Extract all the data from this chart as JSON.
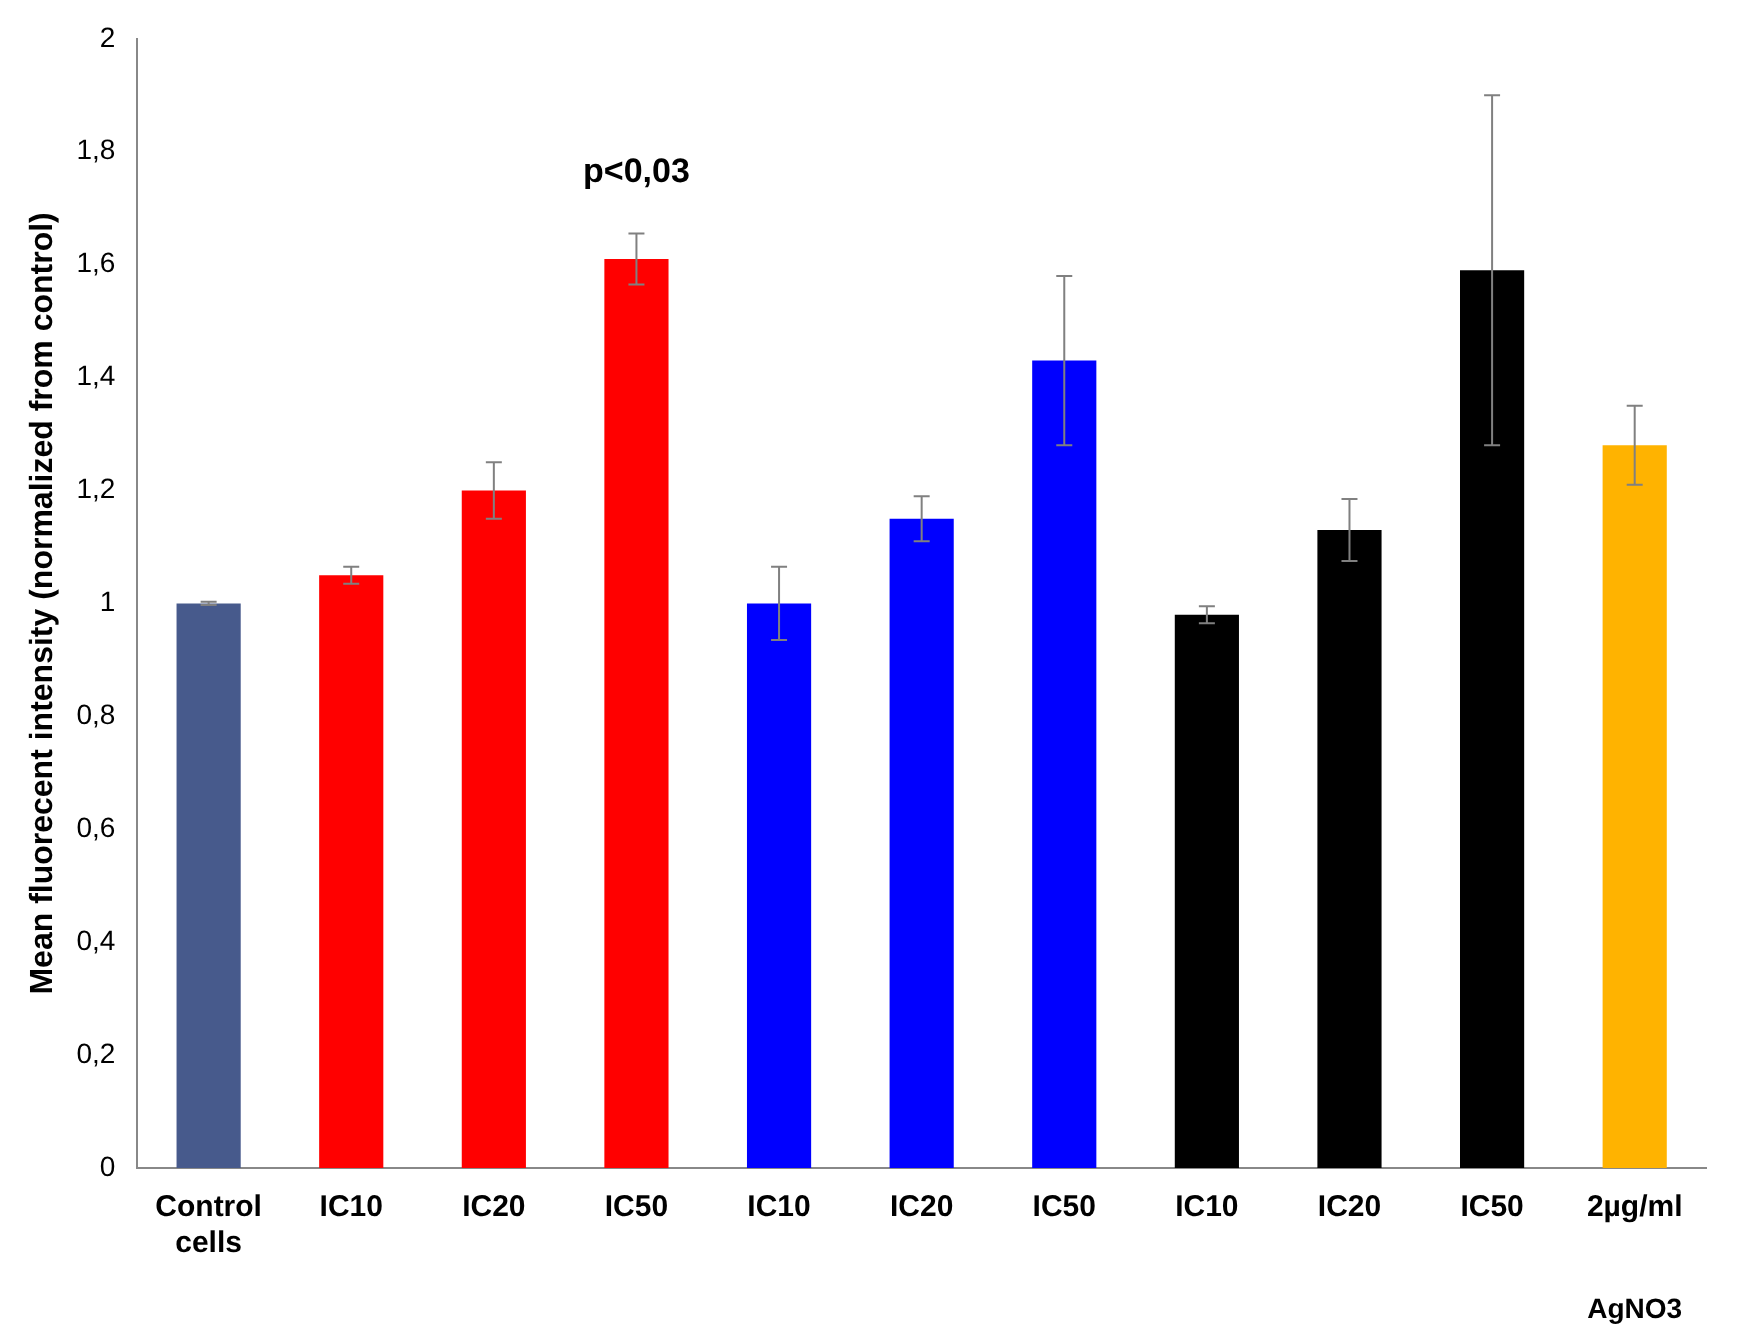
{
  "chart_data": {
    "type": "bar",
    "ylabel": "Mean fluorecent intensity (normalized from control)",
    "categories": [
      "Control cells",
      "IC10",
      "IC20",
      "IC50",
      "IC10",
      "IC20",
      "IC50",
      "IC10",
      "IC20",
      "IC50",
      "2µg/ml"
    ],
    "values": [
      1.0,
      1.05,
      1.2,
      1.61,
      1.0,
      1.15,
      1.43,
      0.98,
      1.13,
      1.59,
      1.28
    ],
    "colors": [
      "#475a8c",
      "#ff0000",
      "#ff0000",
      "#ff0000",
      "#0000ff",
      "#0000ff",
      "#0000ff",
      "#000000",
      "#000000",
      "#000000",
      "#ffb300"
    ],
    "errors": [
      0.003,
      0.015,
      0.05,
      0.045,
      0.065,
      0.04,
      0.15,
      0.015,
      0.055,
      0.31,
      0.07
    ],
    "ylim": [
      0,
      2
    ],
    "yticks": [
      0,
      {
        "value": 0.2,
        "label": "0,2"
      },
      {
        "value": 0.4,
        "label": "0,4"
      },
      {
        "value": 0.6,
        "label": "0,6"
      },
      {
        "value": 0.8,
        "label": "0,8"
      },
      1,
      {
        "value": 1.2,
        "label": "1,2"
      },
      {
        "value": 1.4,
        "label": "1,4"
      },
      {
        "value": 1.6,
        "label": "1,6"
      },
      {
        "value": 1.8,
        "label": "1,8"
      },
      2
    ],
    "grid": false,
    "legend": false,
    "annotations": [
      "p<0,03",
      "AgNO3"
    ]
  }
}
